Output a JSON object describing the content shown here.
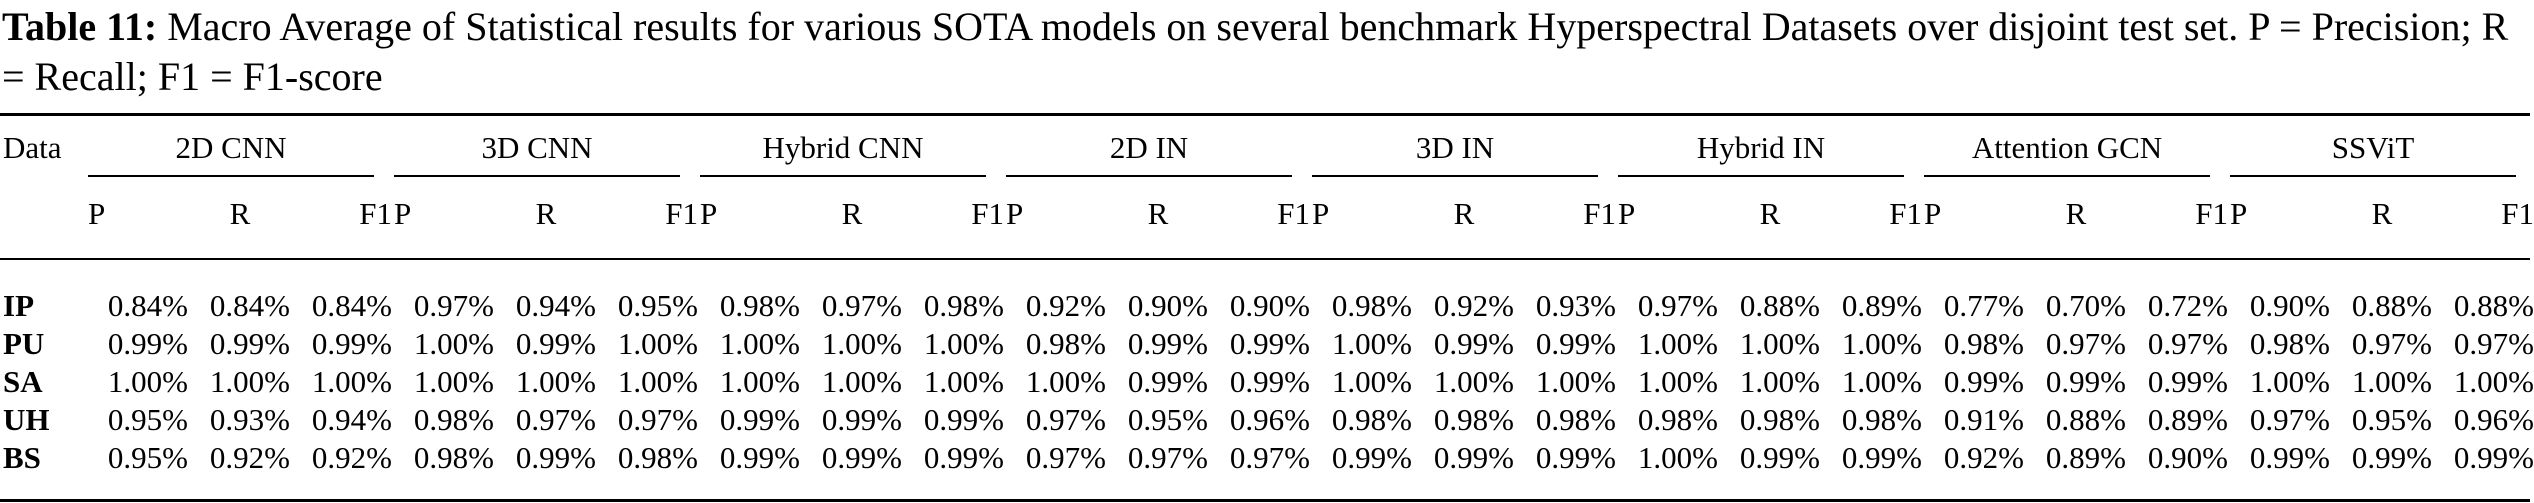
{
  "caption": {
    "label": "Table 11:",
    "text": " Macro Average of Statistical results for various SOTA models on several benchmark Hyperspectral Datasets over disjoint test set. P = Precision; R = Recall; F1 = F1-score"
  },
  "table": {
    "first_header": "Data",
    "sub_headers": [
      "P",
      "R",
      "F1"
    ],
    "models": [
      "2D CNN",
      "3D CNN",
      "Hybrid CNN",
      "2D IN",
      "3D IN",
      "Hybrid IN",
      "Attention GCN",
      "SSViT"
    ],
    "rows": [
      {
        "dataset": "IP",
        "values": [
          "0.84%",
          "0.84%",
          "0.84%",
          "0.97%",
          "0.94%",
          "0.95%",
          "0.98%",
          "0.97%",
          "0.98%",
          "0.92%",
          "0.90%",
          "0.90%",
          "0.98%",
          "0.92%",
          "0.93%",
          "0.97%",
          "0.88%",
          "0.89%",
          "0.77%",
          "0.70%",
          "0.72%",
          "0.90%",
          "0.88%",
          "0.88%"
        ]
      },
      {
        "dataset": "PU",
        "values": [
          "0.99%",
          "0.99%",
          "0.99%",
          "1.00%",
          "0.99%",
          "1.00%",
          "1.00%",
          "1.00%",
          "1.00%",
          "0.98%",
          "0.99%",
          "0.99%",
          "1.00%",
          "0.99%",
          "0.99%",
          "1.00%",
          "1.00%",
          "1.00%",
          "0.98%",
          "0.97%",
          "0.97%",
          "0.98%",
          "0.97%",
          "0.97%"
        ]
      },
      {
        "dataset": "SA",
        "values": [
          "1.00%",
          "1.00%",
          "1.00%",
          "1.00%",
          "1.00%",
          "1.00%",
          "1.00%",
          "1.00%",
          "1.00%",
          "1.00%",
          "0.99%",
          "0.99%",
          "1.00%",
          "1.00%",
          "1.00%",
          "1.00%",
          "1.00%",
          "1.00%",
          "0.99%",
          "0.99%",
          "0.99%",
          "1.00%",
          "1.00%",
          "1.00%"
        ]
      },
      {
        "dataset": "UH",
        "values": [
          "0.95%",
          "0.93%",
          "0.94%",
          "0.98%",
          "0.97%",
          "0.97%",
          "0.99%",
          "0.99%",
          "0.99%",
          "0.97%",
          "0.95%",
          "0.96%",
          "0.98%",
          "0.98%",
          "0.98%",
          "0.98%",
          "0.98%",
          "0.98%",
          "0.91%",
          "0.88%",
          "0.89%",
          "0.97%",
          "0.95%",
          "0.96%"
        ]
      },
      {
        "dataset": "BS",
        "values": [
          "0.95%",
          "0.92%",
          "0.92%",
          "0.98%",
          "0.99%",
          "0.98%",
          "0.99%",
          "0.99%",
          "0.99%",
          "0.97%",
          "0.97%",
          "0.97%",
          "0.99%",
          "0.99%",
          "0.99%",
          "1.00%",
          "0.99%",
          "0.99%",
          "0.92%",
          "0.89%",
          "0.90%",
          "0.99%",
          "0.99%",
          "0.99%"
        ]
      }
    ]
  }
}
